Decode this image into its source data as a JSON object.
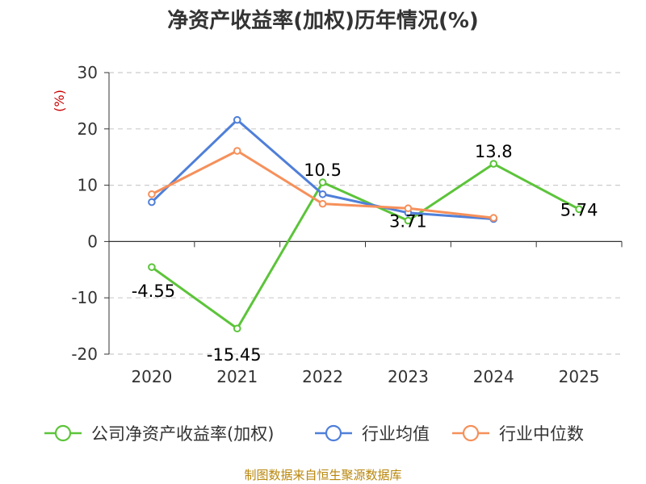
{
  "chart_data": {
    "type": "line",
    "title": "净资产收益率(加权)历年情况(%)",
    "ylabel": "(%)",
    "categories": [
      "2020",
      "2021",
      "2022",
      "2023",
      "2024",
      "2025"
    ],
    "ylim": [
      -20,
      30
    ],
    "yticks": [
      30,
      20,
      10,
      0,
      -10,
      -20
    ],
    "grid": true,
    "legend_position": "bottom",
    "series": [
      {
        "name": "公司净资产收益率(加权)",
        "color": "#5cc43a",
        "values": [
          -4.55,
          -15.45,
          10.5,
          3.71,
          13.8,
          5.74
        ],
        "labels": [
          "-4.55",
          "-15.45",
          "10.5",
          "3.71",
          "13.8",
          "5.74"
        ]
      },
      {
        "name": "行业均值",
        "color": "#4f7fd9",
        "values": [
          7.0,
          21.6,
          8.4,
          5.1,
          4.0,
          null
        ]
      },
      {
        "name": "行业中位数",
        "color": "#f6905a",
        "values": [
          8.4,
          16.1,
          6.7,
          5.9,
          4.2,
          null
        ]
      }
    ]
  },
  "source": "制图数据来自恒生聚源数据库"
}
